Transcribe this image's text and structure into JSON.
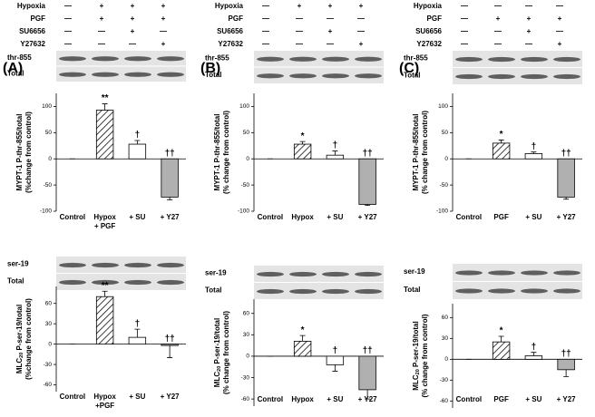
{
  "panels": [
    {
      "letter": "(A)",
      "treatments": [
        {
          "label": "Hypoxia",
          "signs": [
            "—",
            "+",
            "+",
            "+"
          ]
        },
        {
          "label": "PGF",
          "signs": [
            "—",
            "+",
            "+",
            "+"
          ]
        },
        {
          "label": "SU6656",
          "signs": [
            "—",
            "—",
            "+",
            "—"
          ]
        },
        {
          "label": "Y27632",
          "signs": [
            "—",
            "—",
            "—",
            "+"
          ]
        }
      ],
      "blots": [
        [
          "thr-855",
          "Total"
        ],
        [
          "ser-19",
          "Total"
        ]
      ]
    },
    {
      "letter": "(B)",
      "treatments": [
        {
          "label": "Hypoxia",
          "signs": [
            "—",
            "+",
            "+",
            "+"
          ]
        },
        {
          "label": "PGF",
          "signs": [
            "—",
            "—",
            "—",
            "—"
          ]
        },
        {
          "label": "SU6656",
          "signs": [
            "—",
            "—",
            "+",
            "—"
          ]
        },
        {
          "label": "Y27632",
          "signs": [
            "—",
            "—",
            "—",
            "+"
          ]
        }
      ],
      "blots": [
        [
          "thr-855",
          "Total"
        ],
        [
          "ser-19",
          "Total"
        ]
      ]
    },
    {
      "letter": "(C)",
      "treatments": [
        {
          "label": "Hypoxia",
          "signs": [
            "—",
            "—",
            "—",
            "—"
          ]
        },
        {
          "label": "PGF",
          "signs": [
            "—",
            "+",
            "+",
            "+"
          ]
        },
        {
          "label": "SU6656",
          "signs": [
            "—",
            "—",
            "+",
            "—"
          ]
        },
        {
          "label": "Y27632",
          "signs": [
            "—",
            "—",
            "—",
            "+"
          ]
        }
      ],
      "blots": [
        [
          "thr-855",
          "Total"
        ],
        [
          "ser-19",
          "Total"
        ]
      ]
    }
  ],
  "chart_data": [
    {
      "type": "bar",
      "ylabel": [
        [
          "MYPT-1 P-thr-855/total"
        ],
        [
          "(%change from control)"
        ]
      ],
      "categories": [
        "Control",
        [
          "Hypox",
          "+ PGF"
        ],
        "+ SU",
        "+ Y27"
      ],
      "values": [
        0,
        93,
        28,
        -73
      ],
      "errors": [
        0,
        12,
        7,
        5
      ],
      "value_labels": [
        null,
        "**",
        "†",
        "††"
      ],
      "fills": [
        "#ffffff",
        "hatch",
        "#ffffff",
        "#b0b0b0"
      ],
      "ylim": [
        -100,
        125
      ],
      "yticks": [
        -100,
        -50,
        0,
        50,
        100
      ]
    },
    {
      "type": "bar",
      "ylabel": [
        [
          "MLC",
          "20",
          " P-ser-19/total"
        ],
        [
          "(%change from control)"
        ]
      ],
      "categories": [
        "Control",
        [
          "Hypox",
          "+PGF"
        ],
        "+ SU",
        "+ Y27"
      ],
      "values": [
        0,
        70,
        10,
        -2
      ],
      "errors": [
        0,
        8,
        12,
        18
      ],
      "value_labels": [
        null,
        "**",
        "†",
        "††"
      ],
      "fills": [
        "#ffffff",
        "hatch",
        "#ffffff",
        "#b0b0b0"
      ],
      "ylim": [
        -70,
        85
      ],
      "yticks": [
        -60,
        -30,
        0,
        30,
        60
      ]
    },
    {
      "type": "bar",
      "ylabel": [
        [
          "MYPT-1 P-thr-855/total"
        ],
        [
          "(% change from control)"
        ]
      ],
      "categories": [
        "Control",
        "Hypox",
        "+ SU",
        "+ Y27"
      ],
      "values": [
        0,
        28,
        7,
        -87
      ],
      "errors": [
        0,
        5,
        8,
        2
      ],
      "value_labels": [
        null,
        "*",
        "†",
        "††"
      ],
      "fills": [
        "#ffffff",
        "hatch",
        "#ffffff",
        "#b0b0b0"
      ],
      "ylim": [
        -100,
        125
      ],
      "yticks": [
        -100,
        -50,
        0,
        50,
        100
      ]
    },
    {
      "type": "bar",
      "ylabel": [
        [
          "MLC",
          "20",
          " P-ser-19/total"
        ],
        [
          "(% change from control)"
        ]
      ],
      "categories": [
        "Control",
        "Hypox",
        "+ SU",
        "+ Y27"
      ],
      "values": [
        0,
        21,
        -12,
        -47
      ],
      "errors": [
        0,
        8,
        9,
        13
      ],
      "value_labels": [
        null,
        "*",
        "†",
        "††"
      ],
      "fills": [
        "#ffffff",
        "hatch",
        "#ffffff",
        "#b0b0b0"
      ],
      "ylim": [
        -70,
        80
      ],
      "yticks": [
        -60,
        -30,
        0,
        30,
        60
      ]
    },
    {
      "type": "bar",
      "ylabel": [
        [
          "MYPT-1 P-thr-855/total"
        ],
        [
          "(% change from control)"
        ]
      ],
      "categories": [
        "Control",
        "PGF",
        "+ SU",
        "+ Y27"
      ],
      "values": [
        0,
        30,
        10,
        -73
      ],
      "errors": [
        0,
        6,
        3,
        4
      ],
      "value_labels": [
        null,
        "*",
        "†",
        "††"
      ],
      "fills": [
        "#ffffff",
        "hatch",
        "#ffffff",
        "#b0b0b0"
      ],
      "ylim": [
        -100,
        125
      ],
      "yticks": [
        -100,
        -50,
        0,
        50,
        100
      ]
    },
    {
      "type": "bar",
      "ylabel": [
        [
          "MLC",
          "20",
          " P-ser-19/total"
        ],
        [
          "(% change from control)"
        ]
      ],
      "categories": [
        "Control",
        "PGF",
        "+ SU",
        "+ Y27"
      ],
      "values": [
        0,
        25,
        5,
        -15
      ],
      "errors": [
        0,
        8,
        5,
        10
      ],
      "value_labels": [
        null,
        "*",
        "†",
        "††"
      ],
      "fills": [
        "#ffffff",
        "hatch",
        "#ffffff",
        "#b0b0b0"
      ],
      "ylim": [
        -70,
        80
      ],
      "yticks": [
        -60,
        -30,
        0,
        30,
        60
      ]
    }
  ]
}
